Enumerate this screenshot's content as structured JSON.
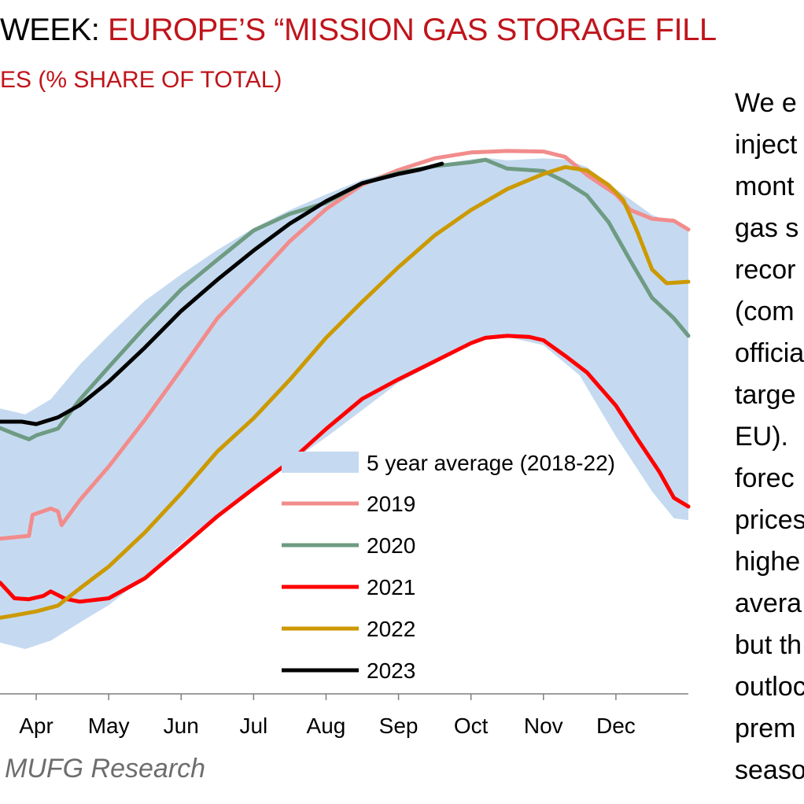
{
  "header": {
    "title_lead": "WEEK: ",
    "title_rest": "EUROPE’S “MISSION GAS STORAGE FILL",
    "subtitle": "ES (% SHARE OF TOTAL)"
  },
  "side_text": [
    "We e",
    "inject",
    "mont",
    "gas s",
    "recor",
    "(com",
    "officia",
    "targe",
    "EU).",
    "forec",
    "prices",
    "highe",
    "avera",
    "but th",
    "outloc",
    "prem",
    "seaso"
  ],
  "source": "MUFG Research",
  "colors": {
    "band": "#c5daf0",
    "2019": "#f28c8c",
    "2020": "#6e9b82",
    "2021": "#ff0000",
    "2022": "#cc9900",
    "2023": "#000000",
    "title_red": "#c0141b"
  },
  "chart_data": {
    "type": "line",
    "x_unit": "month (0 = Jan 1, 12 = Dec 31)",
    "xlim": [
      2.5,
      12.0
    ],
    "ylim": [
      0,
      100
    ],
    "grid": false,
    "legend_position": "lower-middle",
    "tick_labels": [
      {
        "x": 3,
        "label": "Apr"
      },
      {
        "x": 4,
        "label": "May"
      },
      {
        "x": 5,
        "label": "Jun"
      },
      {
        "x": 6,
        "label": "Jul"
      },
      {
        "x": 7,
        "label": "Aug"
      },
      {
        "x": 8,
        "label": "Sep"
      },
      {
        "x": 9,
        "label": "Oct"
      },
      {
        "x": 10,
        "label": "Nov"
      },
      {
        "x": 11,
        "label": "Dec"
      }
    ],
    "band": {
      "name": "5 year average (2018-22)",
      "upper": [
        [
          2.5,
          48.5
        ],
        [
          2.85,
          47.3
        ],
        [
          3.2,
          50.4
        ],
        [
          3.6,
          57.5
        ],
        [
          4.0,
          63.5
        ],
        [
          4.5,
          70.6
        ],
        [
          5.0,
          76.0
        ],
        [
          5.5,
          81.0
        ],
        [
          6.0,
          85.5
        ],
        [
          6.5,
          89.2
        ],
        [
          7.0,
          92.4
        ],
        [
          7.5,
          95.4
        ],
        [
          8.0,
          97.3
        ],
        [
          8.5,
          98.5
        ],
        [
          9.0,
          99.6
        ],
        [
          9.2,
          99.9
        ],
        [
          9.5,
          99.4
        ],
        [
          10.0,
          99.8
        ],
        [
          10.3,
          99.6
        ],
        [
          10.6,
          98.0
        ],
        [
          11.0,
          93.5
        ],
        [
          11.5,
          88.2
        ],
        [
          11.8,
          86.6
        ],
        [
          12.0,
          85.5
        ]
      ],
      "lower": [
        [
          12.0,
          25.6
        ],
        [
          11.8,
          26.0
        ],
        [
          11.5,
          31.5
        ],
        [
          11.0,
          42.8
        ],
        [
          10.5,
          55.3
        ],
        [
          10.0,
          61.5
        ],
        [
          9.5,
          63.2
        ],
        [
          9.2,
          63.2
        ],
        [
          9.0,
          62.0
        ],
        [
          8.5,
          57.7
        ],
        [
          8.0,
          53.8
        ],
        [
          7.5,
          48.2
        ],
        [
          7.0,
          42.6
        ],
        [
          6.5,
          37.4
        ],
        [
          6.0,
          32.2
        ],
        [
          5.5,
          26.8
        ],
        [
          5.0,
          20.8
        ],
        [
          4.5,
          14.0
        ],
        [
          4.0,
          8.2
        ],
        [
          3.6,
          4.6
        ],
        [
          3.2,
          0.9
        ],
        [
          2.85,
          -0.8
        ],
        [
          2.5,
          0.5
        ]
      ]
    },
    "series": [
      {
        "name": "2019",
        "points": [
          [
            2.5,
            21.8
          ],
          [
            2.9,
            22.4
          ],
          [
            2.95,
            26.7
          ],
          [
            3.2,
            28.0
          ],
          [
            3.3,
            27.4
          ],
          [
            3.35,
            24.6
          ],
          [
            3.6,
            29.7
          ],
          [
            4.0,
            36.6
          ],
          [
            4.5,
            46.2
          ],
          [
            5.0,
            56.5
          ],
          [
            5.5,
            67.0
          ],
          [
            6.0,
            74.8
          ],
          [
            6.5,
            82.8
          ],
          [
            7.0,
            89.4
          ],
          [
            7.5,
            94.4
          ],
          [
            8.0,
            97.4
          ],
          [
            8.5,
            99.8
          ],
          [
            9.0,
            101.0
          ],
          [
            9.5,
            101.3
          ],
          [
            10.0,
            101.2
          ],
          [
            10.3,
            100.1
          ],
          [
            10.6,
            96.4
          ],
          [
            11.0,
            92.4
          ],
          [
            11.2,
            89.2
          ],
          [
            11.5,
            87.4
          ],
          [
            11.8,
            87.0
          ],
          [
            12.0,
            85.2
          ]
        ]
      },
      {
        "name": "2020",
        "points": [
          [
            2.5,
            44.5
          ],
          [
            2.7,
            43.3
          ],
          [
            2.9,
            42.2
          ],
          [
            3.0,
            43.0
          ],
          [
            3.3,
            44.4
          ],
          [
            3.6,
            50.3
          ],
          [
            4.0,
            57.0
          ],
          [
            4.5,
            65.2
          ],
          [
            5.0,
            72.9
          ],
          [
            5.5,
            79.0
          ],
          [
            6.0,
            85.0
          ],
          [
            6.5,
            88.4
          ],
          [
            7.0,
            90.7
          ],
          [
            7.5,
            94.7
          ],
          [
            8.0,
            96.8
          ],
          [
            8.5,
            98.2
          ],
          [
            9.0,
            99.0
          ],
          [
            9.2,
            99.5
          ],
          [
            9.5,
            97.7
          ],
          [
            10.0,
            97.2
          ],
          [
            10.3,
            95.0
          ],
          [
            10.6,
            92.2
          ],
          [
            10.9,
            86.7
          ],
          [
            11.2,
            78.8
          ],
          [
            11.5,
            71.2
          ],
          [
            11.8,
            67.0
          ],
          [
            12.0,
            63.4
          ]
        ]
      },
      {
        "name": "2021",
        "points": [
          [
            2.5,
            12.8
          ],
          [
            2.7,
            9.6
          ],
          [
            2.9,
            9.4
          ],
          [
            3.1,
            10.1
          ],
          [
            3.2,
            11.0
          ],
          [
            3.4,
            9.5
          ],
          [
            3.6,
            8.9
          ],
          [
            4.0,
            9.6
          ],
          [
            4.5,
            13.7
          ],
          [
            5.0,
            20.0
          ],
          [
            5.5,
            26.4
          ],
          [
            6.0,
            32.1
          ],
          [
            6.5,
            37.6
          ],
          [
            7.0,
            44.3
          ],
          [
            7.5,
            50.5
          ],
          [
            8.0,
            54.5
          ],
          [
            8.5,
            58.2
          ],
          [
            9.0,
            61.9
          ],
          [
            9.2,
            63.0
          ],
          [
            9.5,
            63.4
          ],
          [
            9.8,
            63.2
          ],
          [
            10.0,
            62.5
          ],
          [
            10.3,
            59.3
          ],
          [
            10.6,
            55.9
          ],
          [
            11.0,
            49.1
          ],
          [
            11.3,
            42.2
          ],
          [
            11.6,
            35.5
          ],
          [
            11.8,
            30.2
          ],
          [
            12.0,
            28.4
          ]
        ]
      },
      {
        "name": "2022",
        "points": [
          [
            2.5,
            5.6
          ],
          [
            2.7,
            6.1
          ],
          [
            3.0,
            6.9
          ],
          [
            3.3,
            8.1
          ],
          [
            3.6,
            11.6
          ],
          [
            4.0,
            16.1
          ],
          [
            4.5,
            23.1
          ],
          [
            5.0,
            31.1
          ],
          [
            5.5,
            39.7
          ],
          [
            6.0,
            46.5
          ],
          [
            6.5,
            54.4
          ],
          [
            7.0,
            63.0
          ],
          [
            7.5,
            70.4
          ],
          [
            8.0,
            77.5
          ],
          [
            8.5,
            84.0
          ],
          [
            9.0,
            89.2
          ],
          [
            9.5,
            93.5
          ],
          [
            10.0,
            96.6
          ],
          [
            10.3,
            98.0
          ],
          [
            10.6,
            97.3
          ],
          [
            10.9,
            94.3
          ],
          [
            11.1,
            91.3
          ],
          [
            11.3,
            84.6
          ],
          [
            11.5,
            77.0
          ],
          [
            11.7,
            74.2
          ],
          [
            12.0,
            74.5
          ]
        ]
      },
      {
        "name": "2023",
        "points": [
          [
            2.5,
            45.8
          ],
          [
            2.8,
            45.8
          ],
          [
            3.0,
            45.3
          ],
          [
            3.3,
            46.7
          ],
          [
            3.6,
            49.2
          ],
          [
            4.0,
            54.0
          ],
          [
            4.5,
            61.0
          ],
          [
            5.0,
            68.5
          ],
          [
            5.5,
            74.9
          ],
          [
            6.0,
            80.9
          ],
          [
            6.5,
            86.4
          ],
          [
            7.0,
            91.0
          ],
          [
            7.5,
            94.7
          ],
          [
            8.0,
            96.6
          ],
          [
            8.3,
            97.5
          ],
          [
            8.6,
            98.7
          ]
        ]
      }
    ]
  }
}
